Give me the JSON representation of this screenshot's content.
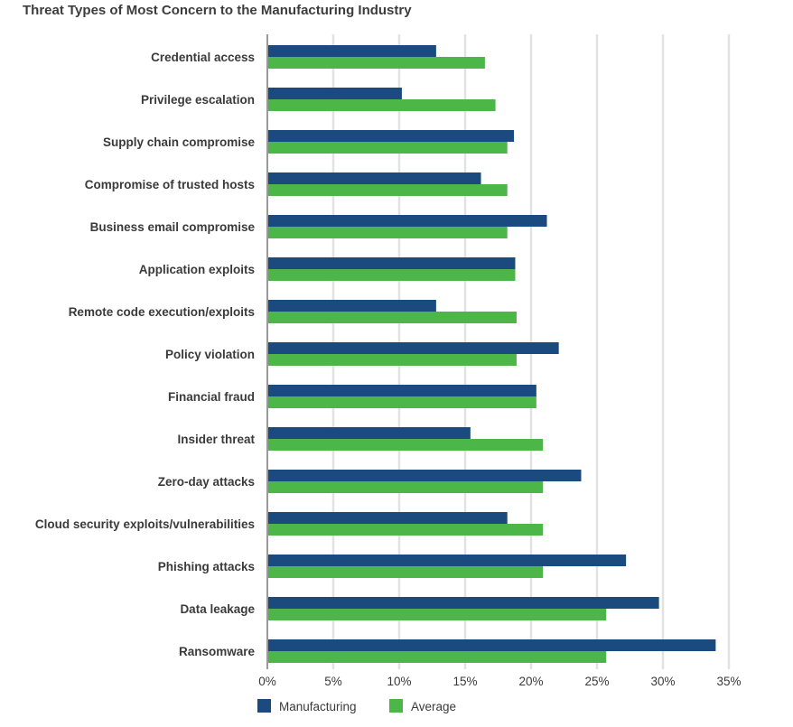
{
  "chart_data": {
    "type": "bar",
    "orientation": "horizontal",
    "title": "Threat Types of Most Concern to the Manufacturing Industry",
    "categories": [
      "Credential access",
      "Privilege escalation",
      "Supply chain compromise",
      "Compromise of trusted hosts",
      "Business email compromise",
      "Application exploits",
      "Remote code execution/exploits",
      "Policy violation",
      "Financial fraud",
      "Insider threat",
      "Zero-day attacks",
      "Cloud security exploits/vulnerabilities",
      "Phishing attacks",
      "Data leakage",
      "Ransomware"
    ],
    "series": [
      {
        "name": "Manufacturing",
        "color": "#1b4a7e",
        "values": [
          12.8,
          10.2,
          18.7,
          16.2,
          21.2,
          18.8,
          12.8,
          22.1,
          20.4,
          15.4,
          23.8,
          18.2,
          27.2,
          29.7,
          34.0
        ]
      },
      {
        "name": "Average",
        "color": "#4cb648",
        "values": [
          16.5,
          17.3,
          18.2,
          18.2,
          18.2,
          18.8,
          18.9,
          18.9,
          20.4,
          20.9,
          20.9,
          20.9,
          20.9,
          25.7,
          25.7
        ]
      }
    ],
    "xlim": [
      0,
      35
    ],
    "xticks": [
      "0%",
      "5%",
      "10%",
      "15%",
      "20%",
      "25%",
      "30%",
      "35%"
    ],
    "grid": true,
    "legend": "bottom"
  }
}
